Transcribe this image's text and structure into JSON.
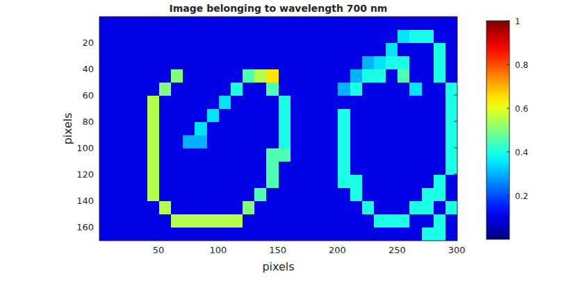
{
  "chart_data": {
    "type": "heatmap",
    "title": "Image belonging to wavelength 700 nm",
    "x_label": "pixels",
    "y_label": "pixels",
    "xlim": [
      0.5,
      300.5
    ],
    "ylim": [
      0.5,
      170.5
    ],
    "xticks": [
      50,
      100,
      150,
      200,
      250,
      300
    ],
    "yticks": [
      20,
      40,
      60,
      80,
      100,
      120,
      140,
      160
    ],
    "colorbar_lim": [
      0,
      1
    ],
    "colorbar_ticks": [
      0.2,
      0.4,
      0.6,
      0.8,
      1
    ],
    "cells": [
      [
        0.1,
        0.1,
        0.1,
        0.1,
        0.1,
        0.1,
        0.1,
        0.1,
        0.1,
        0.1,
        0.1,
        0.1,
        0.1,
        0.1,
        0.1,
        0.1,
        0.1,
        0.1,
        0.1,
        0.1,
        0.1,
        0.1,
        0.1,
        0.1,
        0.1,
        0.1,
        0.1,
        0.1,
        0.1,
        0.1
      ],
      [
        0.1,
        0.1,
        0.1,
        0.1,
        0.1,
        0.1,
        0.1,
        0.1,
        0.1,
        0.1,
        0.1,
        0.1,
        0.1,
        0.1,
        0.1,
        0.1,
        0.1,
        0.1,
        0.1,
        0.1,
        0.1,
        0.1,
        0.1,
        0.1,
        0.1,
        0.35,
        0.4,
        0.4,
        0.1,
        0.1
      ],
      [
        0.1,
        0.1,
        0.1,
        0.1,
        0.1,
        0.1,
        0.1,
        0.1,
        0.1,
        0.1,
        0.1,
        0.1,
        0.1,
        0.1,
        0.1,
        0.1,
        0.1,
        0.1,
        0.1,
        0.1,
        0.1,
        0.1,
        0.1,
        0.1,
        0.35,
        0.1,
        0.1,
        0.1,
        0.4,
        0.1
      ],
      [
        0.1,
        0.1,
        0.1,
        0.1,
        0.1,
        0.1,
        0.1,
        0.1,
        0.1,
        0.1,
        0.1,
        0.1,
        0.1,
        0.1,
        0.1,
        0.1,
        0.1,
        0.1,
        0.1,
        0.1,
        0.1,
        0.1,
        0.3,
        0.35,
        0.4,
        0.4,
        0.1,
        0.1,
        0.4,
        0.1
      ],
      [
        0.1,
        0.1,
        0.1,
        0.1,
        0.1,
        0.1,
        0.5,
        0.1,
        0.1,
        0.1,
        0.1,
        0.1,
        0.45,
        0.55,
        0.65,
        0.1,
        0.1,
        0.1,
        0.1,
        0.1,
        0.1,
        0.3,
        0.4,
        0.4,
        0.1,
        0.45,
        0.1,
        0.1,
        0.4,
        0.1
      ],
      [
        0.1,
        0.1,
        0.1,
        0.1,
        0.1,
        0.5,
        0.1,
        0.1,
        0.1,
        0.1,
        0.1,
        0.4,
        0.1,
        0.1,
        0.45,
        0.1,
        0.1,
        0.1,
        0.1,
        0.1,
        0.3,
        0.4,
        0.1,
        0.1,
        0.1,
        0.1,
        0.35,
        0.1,
        0.1,
        0.4
      ],
      [
        0.1,
        0.1,
        0.1,
        0.1,
        0.55,
        0.1,
        0.1,
        0.1,
        0.1,
        0.1,
        0.35,
        0.1,
        0.1,
        0.1,
        0.1,
        0.4,
        0.1,
        0.1,
        0.1,
        0.1,
        0.1,
        0.1,
        0.1,
        0.1,
        0.1,
        0.1,
        0.1,
        0.1,
        0.1,
        0.4
      ],
      [
        0.1,
        0.1,
        0.1,
        0.1,
        0.55,
        0.1,
        0.1,
        0.1,
        0.1,
        0.35,
        0.1,
        0.1,
        0.1,
        0.1,
        0.1,
        0.4,
        0.1,
        0.1,
        0.1,
        0.1,
        0.4,
        0.1,
        0.1,
        0.1,
        0.1,
        0.1,
        0.1,
        0.1,
        0.1,
        0.4
      ],
      [
        0.1,
        0.1,
        0.1,
        0.1,
        0.55,
        0.1,
        0.1,
        0.1,
        0.35,
        0.1,
        0.1,
        0.1,
        0.1,
        0.1,
        0.1,
        0.4,
        0.1,
        0.1,
        0.1,
        0.1,
        0.4,
        0.1,
        0.1,
        0.1,
        0.1,
        0.1,
        0.1,
        0.1,
        0.1,
        0.4
      ],
      [
        0.1,
        0.1,
        0.1,
        0.1,
        0.55,
        0.1,
        0.1,
        0.3,
        0.3,
        0.1,
        0.1,
        0.1,
        0.1,
        0.1,
        0.1,
        0.4,
        0.1,
        0.1,
        0.1,
        0.1,
        0.4,
        0.1,
        0.1,
        0.1,
        0.1,
        0.1,
        0.1,
        0.1,
        0.1,
        0.4
      ],
      [
        0.1,
        0.1,
        0.1,
        0.1,
        0.55,
        0.1,
        0.1,
        0.1,
        0.1,
        0.1,
        0.1,
        0.1,
        0.1,
        0.1,
        0.45,
        0.45,
        0.1,
        0.1,
        0.1,
        0.1,
        0.4,
        0.1,
        0.1,
        0.1,
        0.1,
        0.1,
        0.1,
        0.1,
        0.1,
        0.4
      ],
      [
        0.1,
        0.1,
        0.1,
        0.1,
        0.55,
        0.1,
        0.1,
        0.1,
        0.1,
        0.1,
        0.1,
        0.1,
        0.1,
        0.1,
        0.45,
        0.1,
        0.1,
        0.1,
        0.1,
        0.1,
        0.4,
        0.1,
        0.1,
        0.1,
        0.1,
        0.1,
        0.1,
        0.1,
        0.1,
        0.4
      ],
      [
        0.1,
        0.1,
        0.1,
        0.1,
        0.55,
        0.1,
        0.1,
        0.1,
        0.1,
        0.1,
        0.1,
        0.1,
        0.1,
        0.1,
        0.45,
        0.1,
        0.1,
        0.1,
        0.1,
        0.1,
        0.4,
        0.4,
        0.1,
        0.1,
        0.1,
        0.1,
        0.1,
        0.1,
        0.4,
        0.1
      ],
      [
        0.1,
        0.1,
        0.1,
        0.1,
        0.55,
        0.1,
        0.1,
        0.1,
        0.1,
        0.1,
        0.1,
        0.1,
        0.1,
        0.45,
        0.1,
        0.1,
        0.1,
        0.1,
        0.1,
        0.1,
        0.1,
        0.4,
        0.1,
        0.1,
        0.1,
        0.1,
        0.1,
        0.4,
        0.4,
        0.1
      ],
      [
        0.1,
        0.1,
        0.1,
        0.1,
        0.1,
        0.55,
        0.1,
        0.1,
        0.1,
        0.1,
        0.1,
        0.1,
        0.5,
        0.1,
        0.1,
        0.1,
        0.1,
        0.1,
        0.1,
        0.1,
        0.1,
        0.1,
        0.4,
        0.1,
        0.1,
        0.1,
        0.4,
        0.4,
        0.1,
        0.4
      ],
      [
        0.1,
        0.1,
        0.1,
        0.1,
        0.1,
        0.1,
        0.55,
        0.55,
        0.55,
        0.55,
        0.55,
        0.55,
        0.1,
        0.1,
        0.1,
        0.1,
        0.1,
        0.1,
        0.1,
        0.1,
        0.1,
        0.1,
        0.1,
        0.4,
        0.4,
        0.4,
        0.1,
        0.1,
        0.4,
        0.1
      ],
      [
        0.1,
        0.1,
        0.1,
        0.1,
        0.1,
        0.1,
        0.1,
        0.1,
        0.1,
        0.1,
        0.1,
        0.1,
        0.1,
        0.1,
        0.1,
        0.1,
        0.1,
        0.1,
        0.1,
        0.1,
        0.1,
        0.1,
        0.1,
        0.1,
        0.1,
        0.1,
        0.1,
        0.4,
        0.4,
        0.1
      ]
    ]
  }
}
